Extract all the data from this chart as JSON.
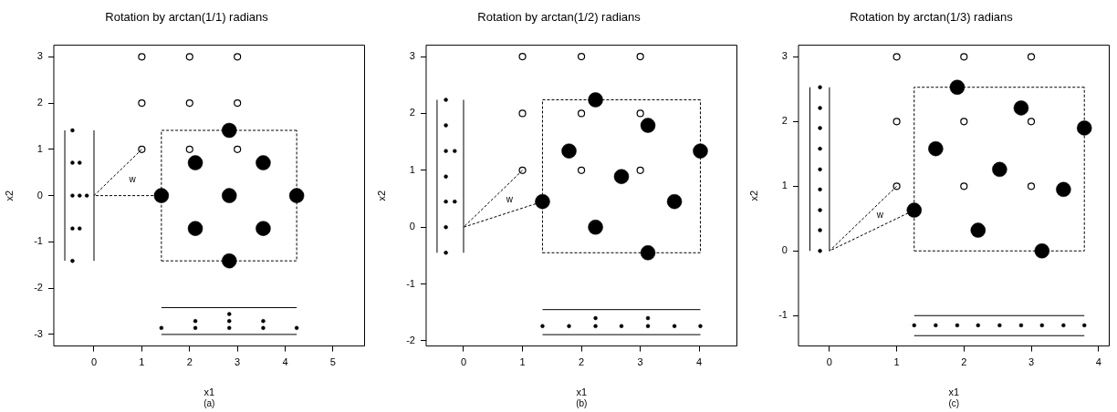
{
  "chart_data": [
    {
      "type": "scatter",
      "title": "Rotation by arctan(1/1) radians",
      "xlabel": "x1",
      "ylabel": "x2",
      "annotations": [
        "(a)"
      ],
      "xlim": [
        -0.84,
        5.66
      ],
      "ylim": [
        -3.25,
        3.25
      ],
      "xticks": [
        0,
        1,
        2,
        3,
        4,
        5
      ],
      "yticks": [
        -3,
        -2,
        -1,
        0,
        1,
        2,
        3
      ],
      "grid": false,
      "legend": false,
      "marker": "circle",
      "series": [
        {
          "color": "#000000",
          "x": [
            1,
            1,
            1,
            2,
            2,
            2,
            3,
            3,
            3
          ],
          "values": [
            1,
            2,
            3,
            1,
            2,
            3,
            1,
            2,
            3
          ]
        },
        {
          "type": "bubble",
          "color": "#000000",
          "x": [
            1.41,
            2.12,
            2.83,
            2.12,
            2.83,
            3.54,
            2.83,
            3.54,
            4.24
          ],
          "values": [
            0,
            0.71,
            1.41,
            -0.71,
            0,
            0.71,
            -1.41,
            -0.71,
            0
          ],
          "sizes": [
            1,
            1,
            1,
            1,
            1,
            1,
            1,
            1,
            1
          ]
        },
        {
          "type": "bubble",
          "color": "#000000",
          "x": [
            -0.45,
            -0.45,
            -0.3,
            -0.45,
            -0.3,
            -0.15,
            -0.45,
            -0.3,
            -0.45
          ],
          "values": [
            1.41,
            0.71,
            0.71,
            0,
            0,
            0,
            -0.71,
            -0.71,
            -1.41
          ],
          "sizes": [
            0.06,
            0.06,
            0.06,
            0.06,
            0.06,
            0.06,
            0.06,
            0.06,
            0.06
          ]
        },
        {
          "type": "bubble",
          "color": "#000000",
          "x": [
            1.41,
            2.12,
            2.12,
            2.83,
            2.83,
            2.83,
            3.54,
            3.54,
            4.24
          ],
          "values": [
            -2.86,
            -2.86,
            -2.71,
            -2.86,
            -2.71,
            -2.56,
            -2.86,
            -2.71,
            -2.86
          ],
          "sizes": [
            0.06,
            0.06,
            0.06,
            0.06,
            0.06,
            0.06,
            0.06,
            0.06,
            0.06
          ]
        },
        {
          "type": "line",
          "line_style": "dashed",
          "marker": "none",
          "color": "#000000",
          "x": [
            1.41,
            4.24,
            4.24
          ],
          "values": [
            -1.41,
            -1.41,
            1.41
          ]
        },
        {
          "type": "line",
          "line_style": "dashed",
          "marker": "none",
          "color": "#000000",
          "x": [
            4.24,
            1.41,
            1.41
          ],
          "values": [
            1.41,
            1.41,
            -1.41
          ]
        },
        {
          "type": "line",
          "name": "w",
          "line_style": "dashed",
          "marker": "none",
          "color": "#000000",
          "x": [
            1,
            0,
            1.41
          ],
          "values": [
            1,
            0,
            0
          ]
        },
        {
          "type": "line",
          "line_style": "solid",
          "marker": "none",
          "color": "#000000",
          "x": [
            -0.61,
            -0.61
          ],
          "values": [
            -1.41,
            1.41
          ]
        },
        {
          "type": "line",
          "line_style": "solid",
          "marker": "none",
          "color": "#000000",
          "x": [
            0,
            0
          ],
          "values": [
            -1.41,
            1.41
          ]
        },
        {
          "type": "line",
          "line_style": "solid",
          "marker": "none",
          "color": "#000000",
          "x": [
            1.41,
            4.24
          ],
          "values": [
            -2.42,
            -2.42
          ]
        },
        {
          "type": "line",
          "line_style": "solid",
          "marker": "none",
          "color": "#000000",
          "x": [
            1.41,
            4.24
          ],
          "values": [
            -3,
            -3
          ]
        }
      ]
    },
    {
      "type": "scatter",
      "title": "Rotation by arctan(1/2) radians",
      "xlabel": "x1",
      "ylabel": "x2",
      "annotations": [
        "(b)"
      ],
      "xlim": [
        -0.635,
        4.64
      ],
      "ylim": [
        -2.09,
        3.2
      ],
      "xticks": [
        0,
        1,
        2,
        3,
        4
      ],
      "yticks": [
        -2,
        -1,
        0,
        1,
        2,
        3
      ],
      "grid": false,
      "legend": false,
      "marker": "circle",
      "series": [
        {
          "color": "#000000",
          "x": [
            1,
            1,
            1,
            2,
            2,
            2,
            3,
            3,
            3
          ],
          "values": [
            1,
            2,
            3,
            1,
            2,
            3,
            1,
            2,
            3
          ]
        },
        {
          "type": "bubble",
          "color": "#000000",
          "x": [
            1.34,
            1.79,
            2.24,
            2.24,
            2.68,
            3.13,
            3.13,
            3.58,
            4.02
          ],
          "values": [
            0.45,
            1.34,
            2.24,
            0,
            0.89,
            1.79,
            -0.45,
            0.45,
            1.34
          ],
          "sizes": [
            1,
            1,
            1,
            1,
            1,
            1,
            1,
            1,
            1
          ]
        },
        {
          "type": "bubble",
          "color": "#000000",
          "x": [
            -0.3,
            -0.3,
            -0.3,
            -0.15,
            -0.3,
            -0.3,
            -0.15,
            -0.3,
            -0.3
          ],
          "values": [
            2.24,
            1.79,
            1.34,
            1.34,
            0.89,
            0.45,
            0.45,
            0,
            -0.45
          ],
          "sizes": [
            0.06,
            0.06,
            0.06,
            0.06,
            0.06,
            0.06,
            0.06,
            0.06,
            0.06
          ]
        },
        {
          "type": "bubble",
          "color": "#000000",
          "x": [
            1.34,
            1.79,
            2.24,
            2.24,
            2.68,
            3.13,
            3.13,
            3.58,
            4.02
          ],
          "values": [
            -1.74,
            -1.74,
            -1.74,
            -1.6,
            -1.74,
            -1.74,
            -1.6,
            -1.74,
            -1.74
          ],
          "sizes": [
            0.06,
            0.06,
            0.06,
            0.06,
            0.06,
            0.06,
            0.06,
            0.06,
            0.06
          ]
        },
        {
          "type": "line",
          "line_style": "dashed",
          "marker": "none",
          "color": "#000000",
          "x": [
            1.34,
            4.02,
            4.02
          ],
          "values": [
            -0.45,
            -0.45,
            2.24
          ]
        },
        {
          "type": "line",
          "line_style": "dashed",
          "marker": "none",
          "color": "#000000",
          "x": [
            4.02,
            1.34,
            1.34
          ],
          "values": [
            2.24,
            2.24,
            -0.45
          ]
        },
        {
          "type": "line",
          "name": "w",
          "line_style": "dashed",
          "marker": "none",
          "color": "#000000",
          "x": [
            1,
            0,
            1.34
          ],
          "values": [
            1,
            0,
            0.45
          ]
        },
        {
          "type": "line",
          "line_style": "solid",
          "marker": "none",
          "color": "#000000",
          "x": [
            -0.45,
            -0.45
          ],
          "values": [
            -0.45,
            2.24
          ]
        },
        {
          "type": "line",
          "line_style": "solid",
          "marker": "none",
          "color": "#000000",
          "x": [
            0,
            0
          ],
          "values": [
            -0.45,
            2.24
          ]
        },
        {
          "type": "line",
          "line_style": "solid",
          "marker": "none",
          "color": "#000000",
          "x": [
            1.34,
            4.02
          ],
          "values": [
            -1.45,
            -1.45
          ]
        },
        {
          "type": "line",
          "line_style": "solid",
          "marker": "none",
          "color": "#000000",
          "x": [
            1.34,
            4.02
          ],
          "values": [
            -1.89,
            -1.89
          ]
        }
      ]
    },
    {
      "type": "scatter",
      "title": "Rotation by arctan(1/3) radians",
      "xlabel": "x1",
      "ylabel": "x2",
      "annotations": [
        "(c)"
      ],
      "xlim": [
        -0.46,
        4.16
      ],
      "ylim": [
        -1.47,
        3.18
      ],
      "xticks": [
        0,
        1,
        2,
        3,
        4
      ],
      "yticks": [
        -1,
        0,
        1,
        2,
        3
      ],
      "grid": false,
      "legend": false,
      "marker": "circle",
      "series": [
        {
          "color": "#000000",
          "x": [
            1,
            1,
            1,
            2,
            2,
            2,
            3,
            3,
            3
          ],
          "values": [
            1,
            2,
            3,
            1,
            2,
            3,
            1,
            2,
            3
          ]
        },
        {
          "type": "bubble",
          "color": "#000000",
          "x": [
            1.26,
            1.58,
            1.9,
            2.21,
            2.53,
            2.85,
            3.16,
            3.48,
            3.79
          ],
          "values": [
            0.63,
            1.58,
            2.53,
            0.32,
            1.26,
            2.21,
            0,
            0.95,
            1.9
          ],
          "sizes": [
            1,
            1,
            1,
            1,
            1,
            1,
            1,
            1,
            1
          ]
        },
        {
          "type": "bubble",
          "color": "#000000",
          "x": [
            -0.14,
            -0.14,
            -0.14,
            -0.14,
            -0.14,
            -0.14,
            -0.14,
            -0.14,
            -0.14
          ],
          "values": [
            0,
            0.32,
            0.63,
            0.95,
            1.26,
            1.58,
            1.9,
            2.21,
            2.53
          ],
          "sizes": [
            0.06,
            0.06,
            0.06,
            0.06,
            0.06,
            0.06,
            0.06,
            0.06,
            0.06
          ]
        },
        {
          "type": "bubble",
          "color": "#000000",
          "x": [
            1.26,
            1.58,
            1.9,
            2.21,
            2.53,
            2.85,
            3.16,
            3.48,
            3.79
          ],
          "values": [
            -1.15,
            -1.15,
            -1.15,
            -1.15,
            -1.15,
            -1.15,
            -1.15,
            -1.15,
            -1.15
          ],
          "sizes": [
            0.06,
            0.06,
            0.06,
            0.06,
            0.06,
            0.06,
            0.06,
            0.06,
            0.06
          ]
        },
        {
          "type": "line",
          "line_style": "dashed",
          "marker": "none",
          "color": "#000000",
          "x": [
            1.26,
            3.79,
            3.79
          ],
          "values": [
            0,
            0,
            2.53
          ]
        },
        {
          "type": "line",
          "line_style": "dashed",
          "marker": "none",
          "color": "#000000",
          "x": [
            3.79,
            1.26,
            1.26
          ],
          "values": [
            2.53,
            2.53,
            0
          ]
        },
        {
          "type": "line",
          "name": "w",
          "line_style": "dashed",
          "marker": "none",
          "color": "#000000",
          "x": [
            1,
            0,
            1.26
          ],
          "values": [
            1,
            0,
            0.63
          ]
        },
        {
          "type": "line",
          "line_style": "solid",
          "marker": "none",
          "color": "#000000",
          "x": [
            -0.29,
            -0.29
          ],
          "values": [
            0,
            2.53
          ]
        },
        {
          "type": "line",
          "line_style": "solid",
          "marker": "none",
          "color": "#000000",
          "x": [
            0,
            0
          ],
          "values": [
            0,
            2.53
          ]
        },
        {
          "type": "line",
          "line_style": "solid",
          "marker": "none",
          "color": "#000000",
          "x": [
            1.26,
            3.79
          ],
          "values": [
            -1,
            -1
          ]
        },
        {
          "type": "line",
          "line_style": "solid",
          "marker": "none",
          "color": "#000000",
          "x": [
            1.26,
            3.79
          ],
          "values": [
            -1.31,
            -1.31
          ]
        }
      ]
    }
  ]
}
